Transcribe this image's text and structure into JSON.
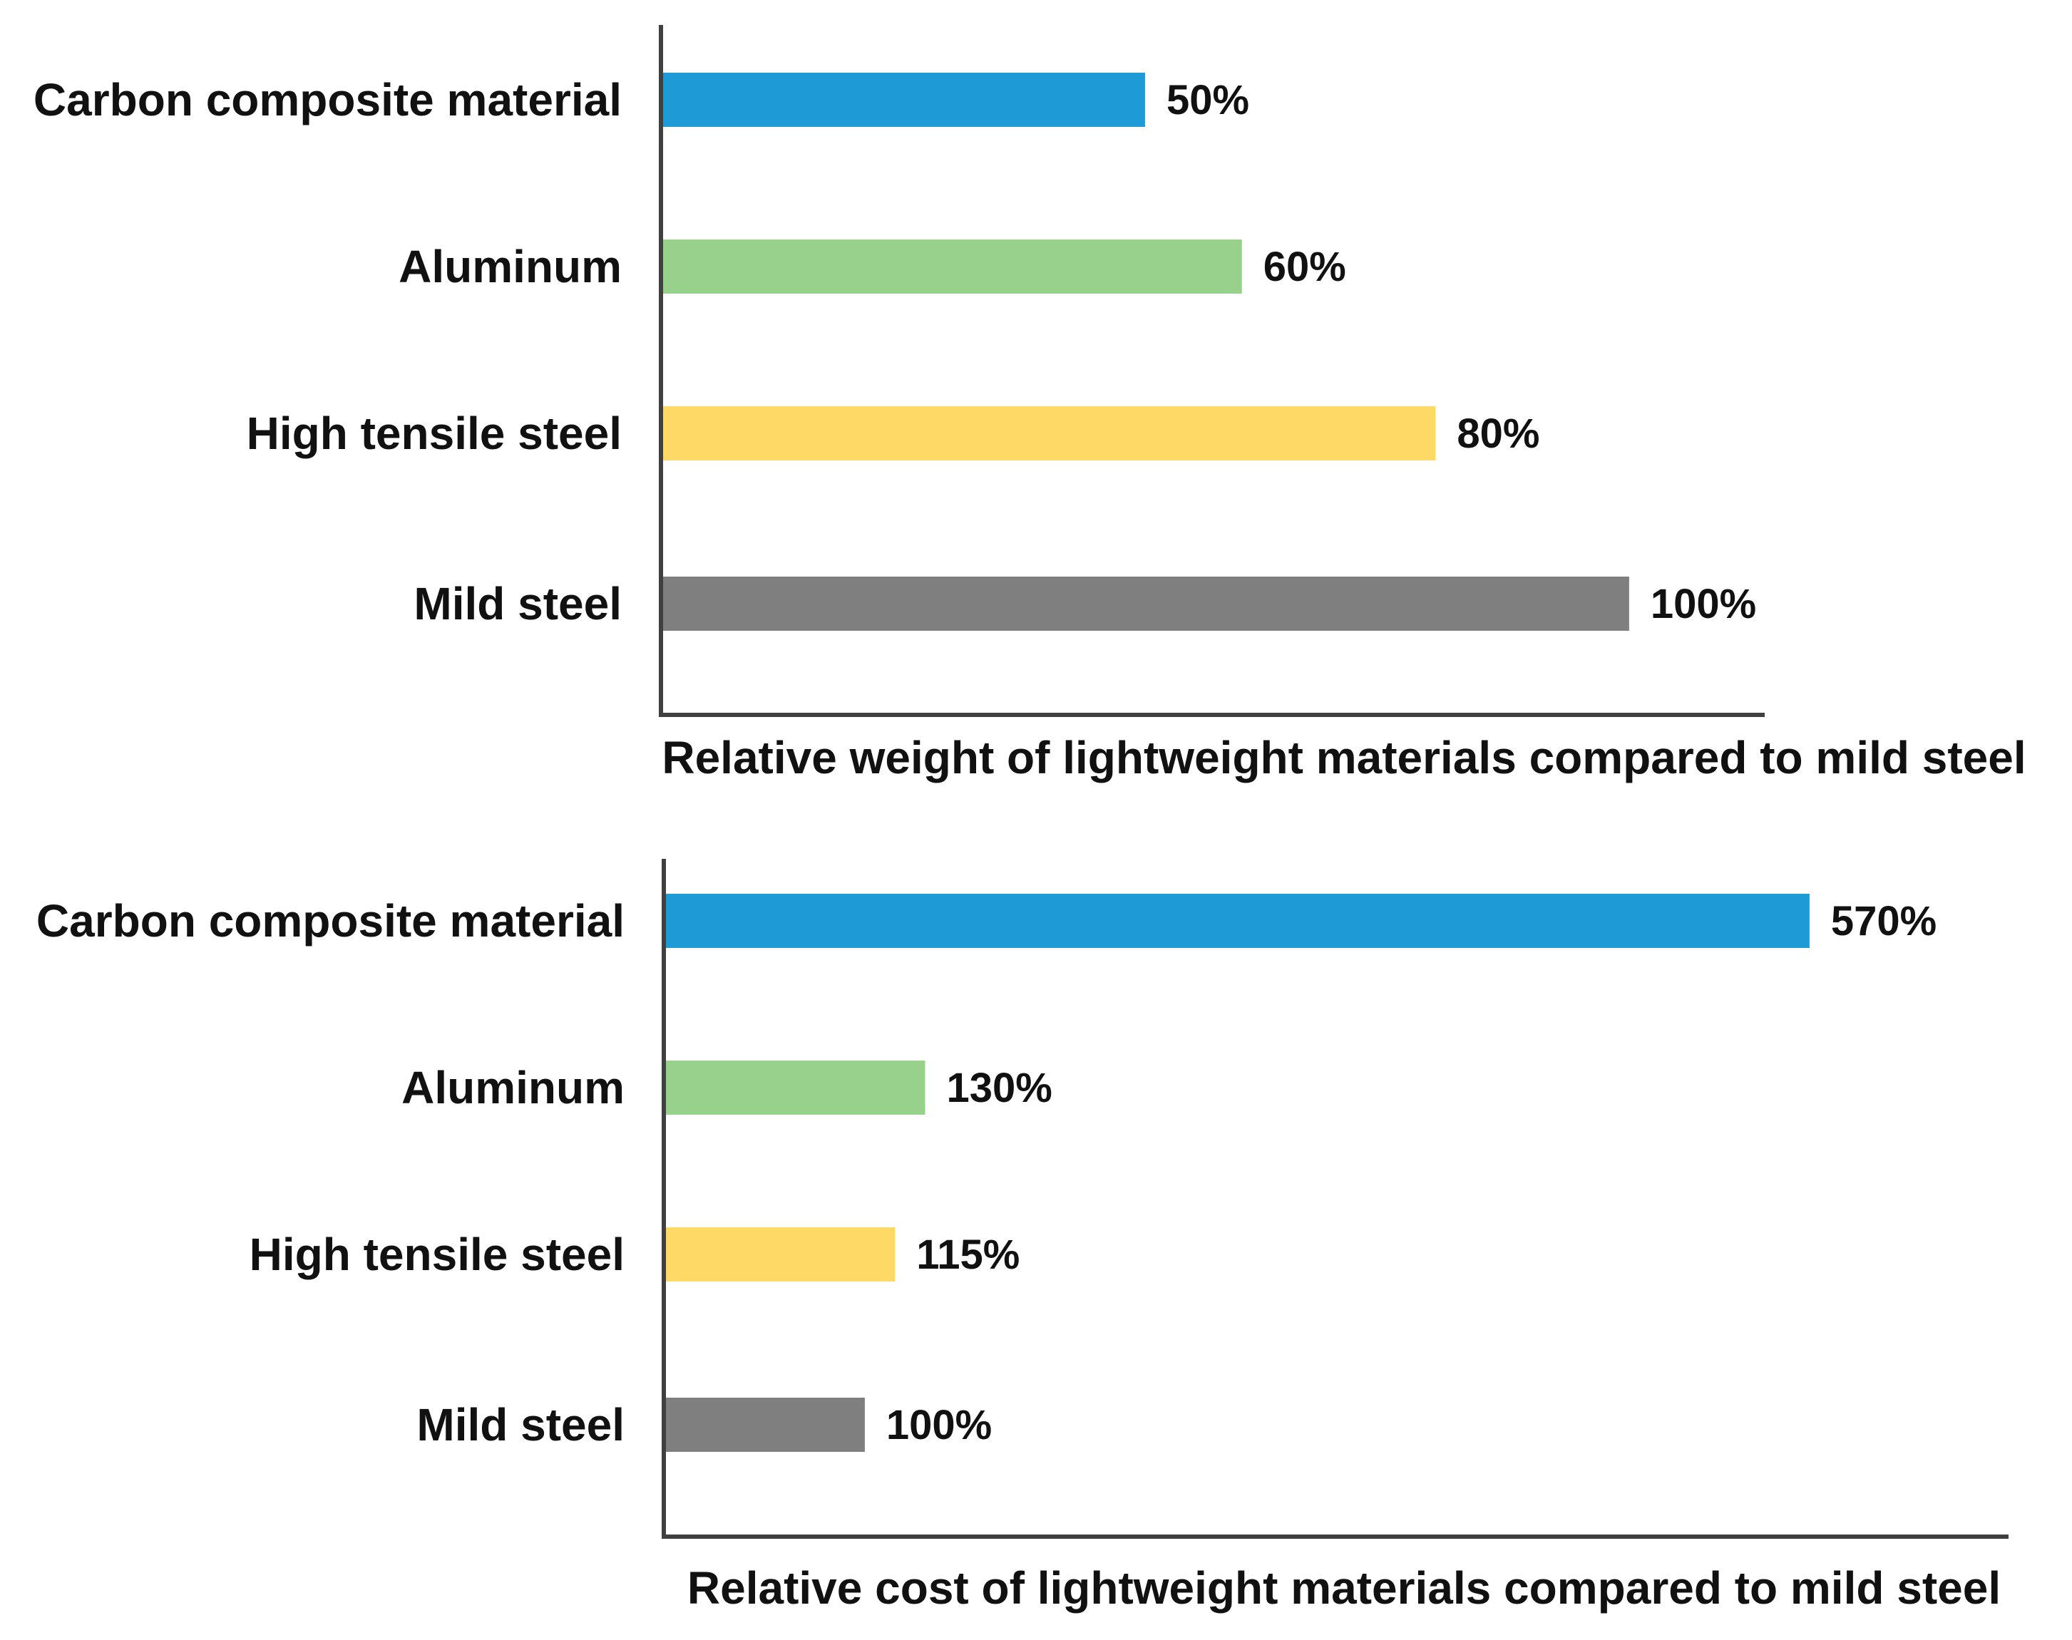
{
  "chart_data": [
    {
      "type": "bar",
      "orientation": "horizontal",
      "title": "Relative weight of lightweight materials compared to mild steel",
      "categories": [
        "Carbon composite material",
        "Aluminum",
        "High tensile steel",
        "Mild steel"
      ],
      "values": [
        50,
        60,
        80,
        100
      ],
      "value_labels": [
        "50%",
        "60%",
        "80%",
        "100%"
      ],
      "colors": [
        "#1e9bd7",
        "#98d18c",
        "#ffd966",
        "#7f7f7f"
      ],
      "xlim": [
        0,
        114
      ],
      "xlabel": "",
      "ylabel": "",
      "grid": false,
      "legend": "none"
    },
    {
      "type": "bar",
      "orientation": "horizontal",
      "title": "Relative cost of lightweight materials compared to mild steel",
      "categories": [
        "Carbon composite material",
        "Aluminum",
        "High tensile steel",
        "Mild steel"
      ],
      "values": [
        570,
        130,
        115,
        100
      ],
      "value_labels": [
        "570%",
        "130%",
        "115%",
        "100%"
      ],
      "colors": [
        "#1e9bd7",
        "#98d18c",
        "#ffd966",
        "#7f7f7f"
      ],
      "xlim": [
        0,
        669
      ],
      "xlabel": "",
      "ylabel": "",
      "grid": false,
      "legend": "none"
    }
  ]
}
